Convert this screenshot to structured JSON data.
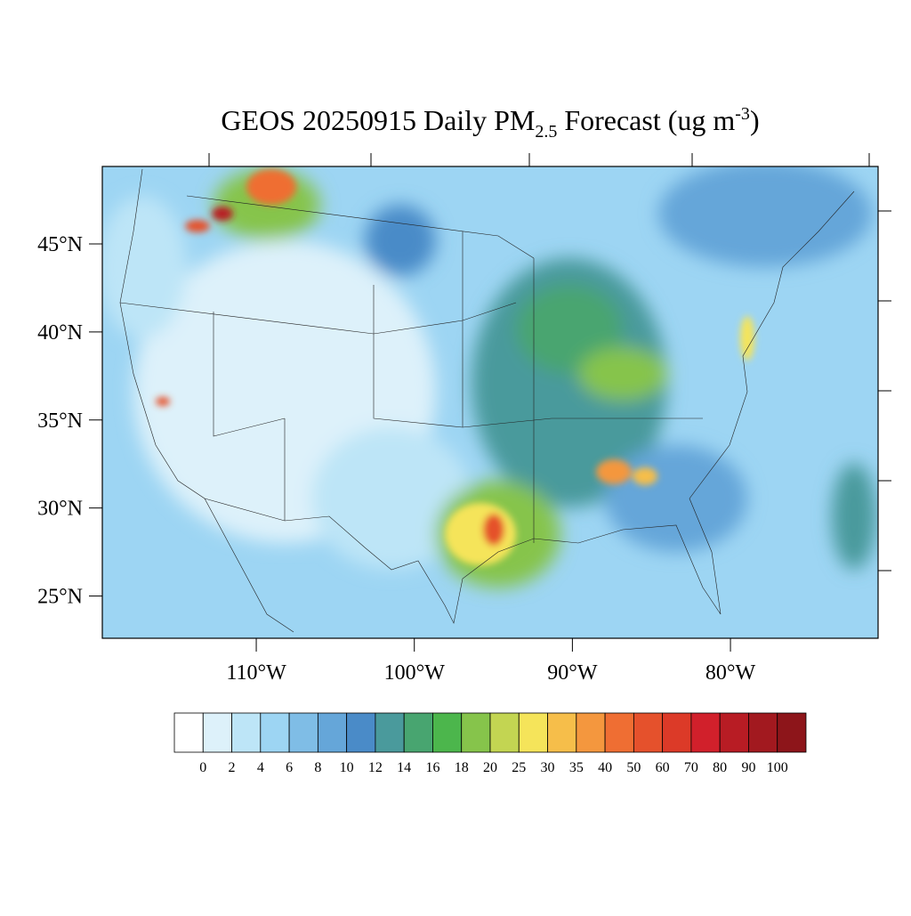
{
  "chart_data": {
    "type": "map",
    "title": {
      "main": "GEOS 20250915 Daily PM",
      "sub": "2.5",
      "rest": " Forecast (ug m",
      "sup": "-3",
      "end": ")"
    },
    "xlim": [
      -119.74,
      -70.66
    ],
    "ylim": [
      22.6,
      49.4
    ],
    "xticks": [
      {
        "value": -110,
        "label": "110°W"
      },
      {
        "value": -100,
        "label": "100°W"
      },
      {
        "value": -90,
        "label": "90°W"
      },
      {
        "value": -80,
        "label": "80°W"
      }
    ],
    "yticks": [
      {
        "value": 25,
        "label": "25°N"
      },
      {
        "value": 30,
        "label": "30°N"
      },
      {
        "value": 35,
        "label": "35°N"
      },
      {
        "value": 40,
        "label": "40°N"
      },
      {
        "value": 45,
        "label": "45°N"
      }
    ],
    "colorbar": {
      "levels": [
        0,
        2,
        4,
        6,
        8,
        10,
        12,
        14,
        16,
        18,
        20,
        25,
        30,
        35,
        40,
        50,
        60,
        70,
        80,
        90,
        100
      ],
      "colors": [
        "#ffffff",
        "#ddf1fa",
        "#bde5f7",
        "#9dd5f3",
        "#7fbde6",
        "#65a6d9",
        "#4a8bc8",
        "#4a9a9c",
        "#48a570",
        "#4cb64c",
        "#86c44b",
        "#c3d552",
        "#f5e45a",
        "#f6be4a",
        "#f4973e",
        "#ef6e33",
        "#e5512c",
        "#dc3a28",
        "#d1202b",
        "#b81c24",
        "#a2191f",
        "#8d151a"
      ]
    }
  }
}
